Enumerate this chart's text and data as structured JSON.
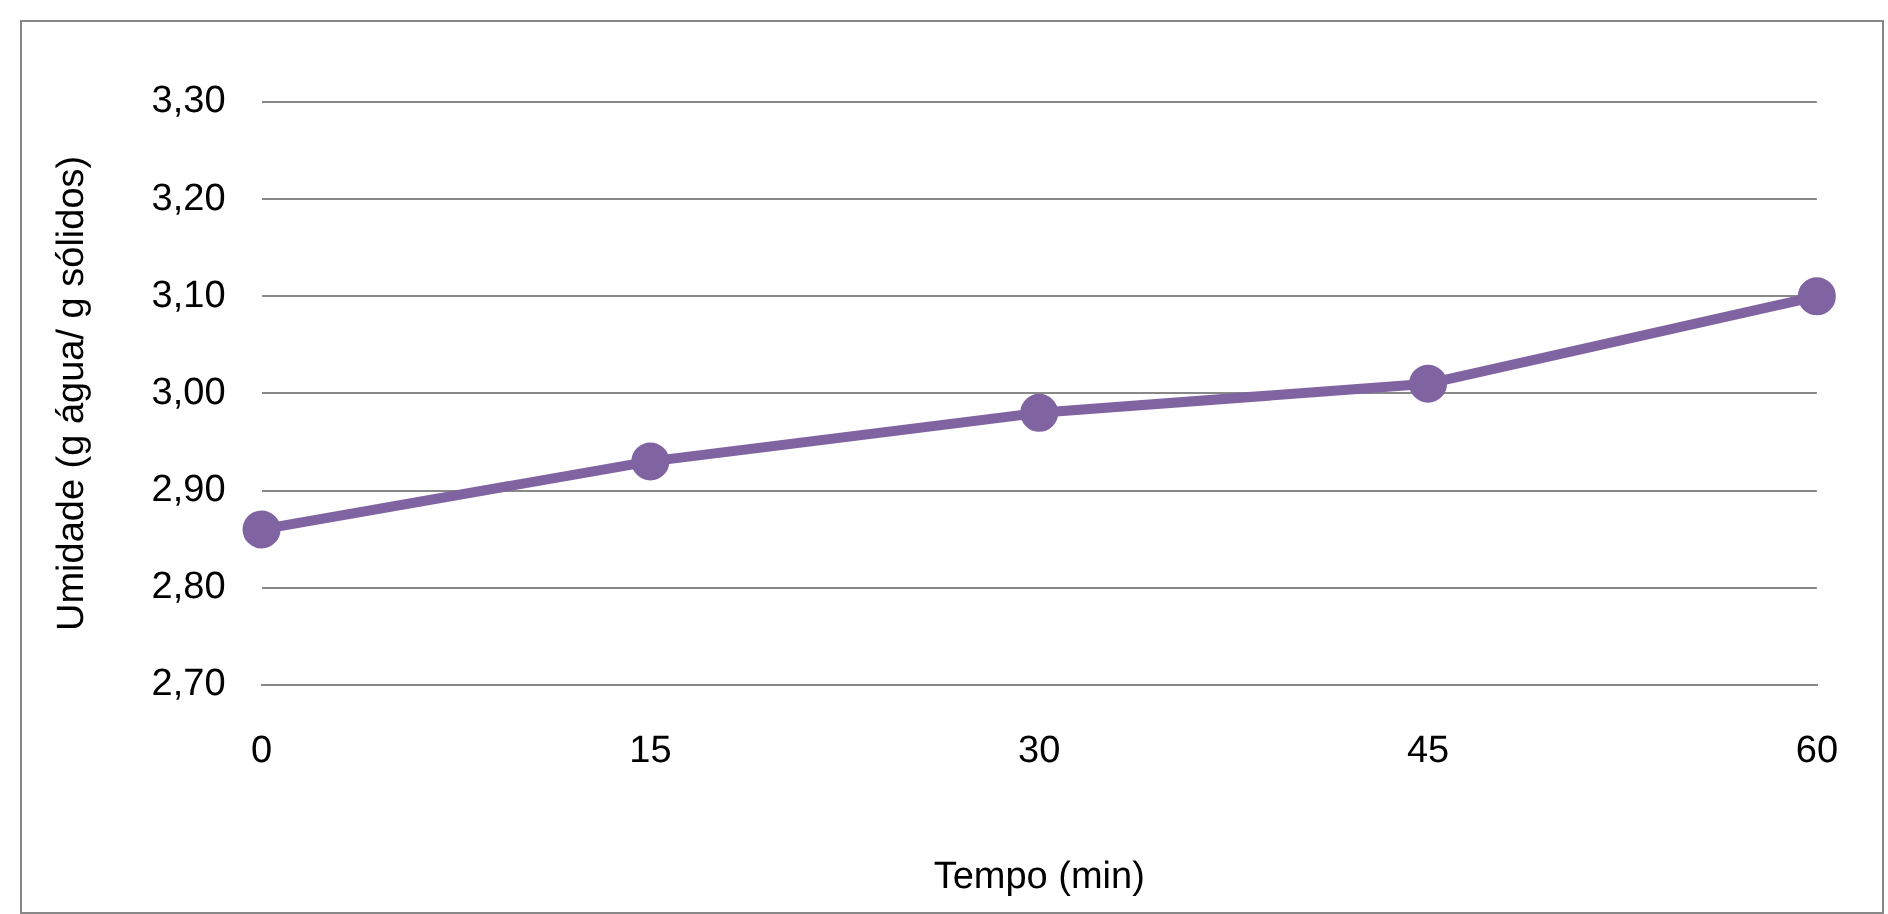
{
  "chart_data": {
    "type": "line",
    "xlabel": "Tempo (min)",
    "ylabel": "Umidade (g água/ g sólidos)",
    "x": [
      0,
      15,
      30,
      45,
      60
    ],
    "series": [
      {
        "color": "#8064a2",
        "values": [
          2.86,
          2.93,
          2.98,
          3.01,
          3.1
        ]
      }
    ],
    "xlim": [
      0,
      60
    ],
    "xticks": [
      0,
      15,
      30,
      45,
      60
    ],
    "ylim": [
      2.7,
      3.3
    ],
    "yticks": [
      {
        "value": 2.7,
        "label": "2,70"
      },
      {
        "value": 2.8,
        "label": "2,80"
      },
      {
        "value": 2.9,
        "label": "2,90"
      },
      {
        "value": 3.0,
        "label": "3,00"
      },
      {
        "value": 3.1,
        "label": "3,10"
      },
      {
        "value": 3.2,
        "label": "3,20"
      },
      {
        "value": 3.3,
        "label": "3,30"
      }
    ],
    "grid": "y",
    "legend": false,
    "marker": "circle",
    "line_style": "solid"
  }
}
